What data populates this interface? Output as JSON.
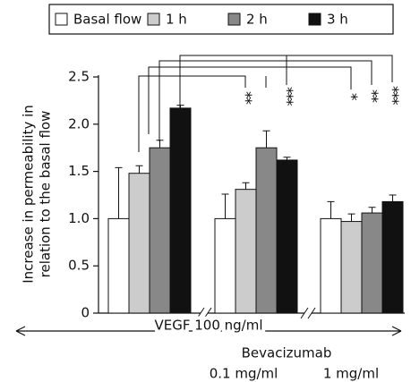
{
  "chart_data": {
    "type": "bar",
    "ylabel": [
      "Increase in permeability in",
      "relation to the basal flow"
    ],
    "categories": [
      null,
      "0.1 mg/ml",
      "1 mg/ml"
    ],
    "xlabel": "VEGF 100 ng/ml",
    "group_label": "Bevacizumab",
    "series": [
      {
        "name": "Basal flow",
        "color": "#ffffff",
        "values": [
          1.0,
          1.0,
          1.0
        ],
        "errors": [
          0.54,
          0.26,
          0.18
        ]
      },
      {
        "name": "1 h",
        "color": "#cccccc",
        "values": [
          1.48,
          1.31,
          0.97
        ],
        "errors": [
          0.08,
          0.07,
          0.08
        ]
      },
      {
        "name": "2 h",
        "color": "#888888",
        "values": [
          1.75,
          1.75,
          1.06
        ],
        "errors": [
          0.08,
          0.18,
          0.06
        ]
      },
      {
        "name": "3 h",
        "color": "#111111",
        "values": [
          2.17,
          1.62,
          1.18
        ],
        "errors": [
          0.03,
          0.03,
          0.07
        ]
      }
    ],
    "annotations": [
      "**",
      "***",
      "*",
      "**",
      "***"
    ],
    "ylim": [
      0,
      2.5
    ],
    "yticks": [
      0,
      0.5,
      {
        "value": 1,
        "label": "1.0"
      },
      1.5,
      {
        "value": 2,
        "label": "2.0"
      },
      2.5
    ],
    "legend": "top"
  }
}
